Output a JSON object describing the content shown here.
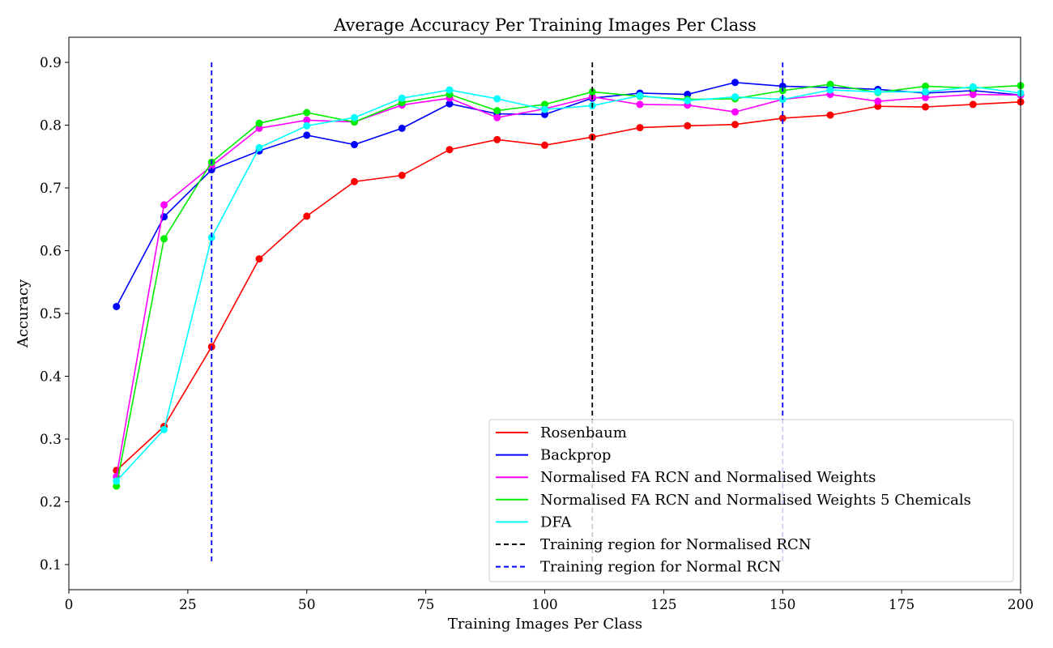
{
  "chart_data": {
    "type": "line",
    "title": "Average Accuracy Per Training Images Per Class",
    "xlabel": "Training Images Per Class",
    "ylabel": "Accuracy",
    "xlim": [
      0,
      200
    ],
    "ylim": [
      0.06,
      0.94
    ],
    "xticks": [
      0,
      25,
      50,
      75,
      100,
      125,
      150,
      175,
      200
    ],
    "yticks": [
      0.1,
      0.2,
      0.3,
      0.4,
      0.5,
      0.6,
      0.7,
      0.8,
      0.9
    ],
    "grid": false,
    "legend_position": "lower-right",
    "x": [
      10,
      20,
      30,
      40,
      50,
      60,
      70,
      80,
      90,
      100,
      110,
      120,
      130,
      140,
      150,
      160,
      170,
      180,
      190,
      200
    ],
    "series": [
      {
        "name": "Rosenbaum",
        "color": "#ff0000",
        "values": [
          0.25,
          0.32,
          0.447,
          0.587,
          0.655,
          0.71,
          0.72,
          0.761,
          0.777,
          0.768,
          0.781,
          0.796,
          0.799,
          0.801,
          0.811,
          0.816,
          0.83,
          0.829,
          0.833,
          0.837
        ]
      },
      {
        "name": "Backprop",
        "color": "#0000ff",
        "values": [
          0.511,
          0.654,
          0.729,
          0.759,
          0.784,
          0.769,
          0.795,
          0.834,
          0.818,
          0.817,
          0.843,
          0.851,
          0.849,
          0.868,
          0.862,
          0.86,
          0.857,
          0.851,
          0.855,
          0.848
        ]
      },
      {
        "name": "Normalised FA RCN and Normalised Weights",
        "color": "#ff00ff",
        "values": [
          0.24,
          0.673,
          0.735,
          0.795,
          0.808,
          0.805,
          0.832,
          0.843,
          0.812,
          0.826,
          0.845,
          0.833,
          0.832,
          0.821,
          0.841,
          0.849,
          0.838,
          0.844,
          0.849,
          0.848
        ]
      },
      {
        "name": "Normalised FA RCN and Normalised Weights 5 Chemicals",
        "color": "#00ee00",
        "values": [
          0.225,
          0.619,
          0.741,
          0.803,
          0.82,
          0.805,
          0.836,
          0.849,
          0.823,
          0.833,
          0.853,
          0.846,
          0.841,
          0.842,
          0.855,
          0.865,
          0.852,
          0.862,
          0.859,
          0.863
        ]
      },
      {
        "name": "DFA",
        "color": "#00ffff",
        "values": [
          0.233,
          0.315,
          0.621,
          0.764,
          0.799,
          0.812,
          0.843,
          0.856,
          0.842,
          0.825,
          0.831,
          0.847,
          0.839,
          0.845,
          0.841,
          0.856,
          0.853,
          0.853,
          0.861,
          0.851
        ]
      }
    ],
    "vlines": [
      {
        "name": "Training region for Normalised RCN",
        "color": "#000000",
        "x": [
          110
        ],
        "ymin": 0.1,
        "ymax": 0.9
      },
      {
        "name": "Training region for Normal RCN",
        "color": "#0000ff",
        "x": [
          30,
          150
        ],
        "ymin": 0.1,
        "ymax": 0.9
      }
    ]
  }
}
